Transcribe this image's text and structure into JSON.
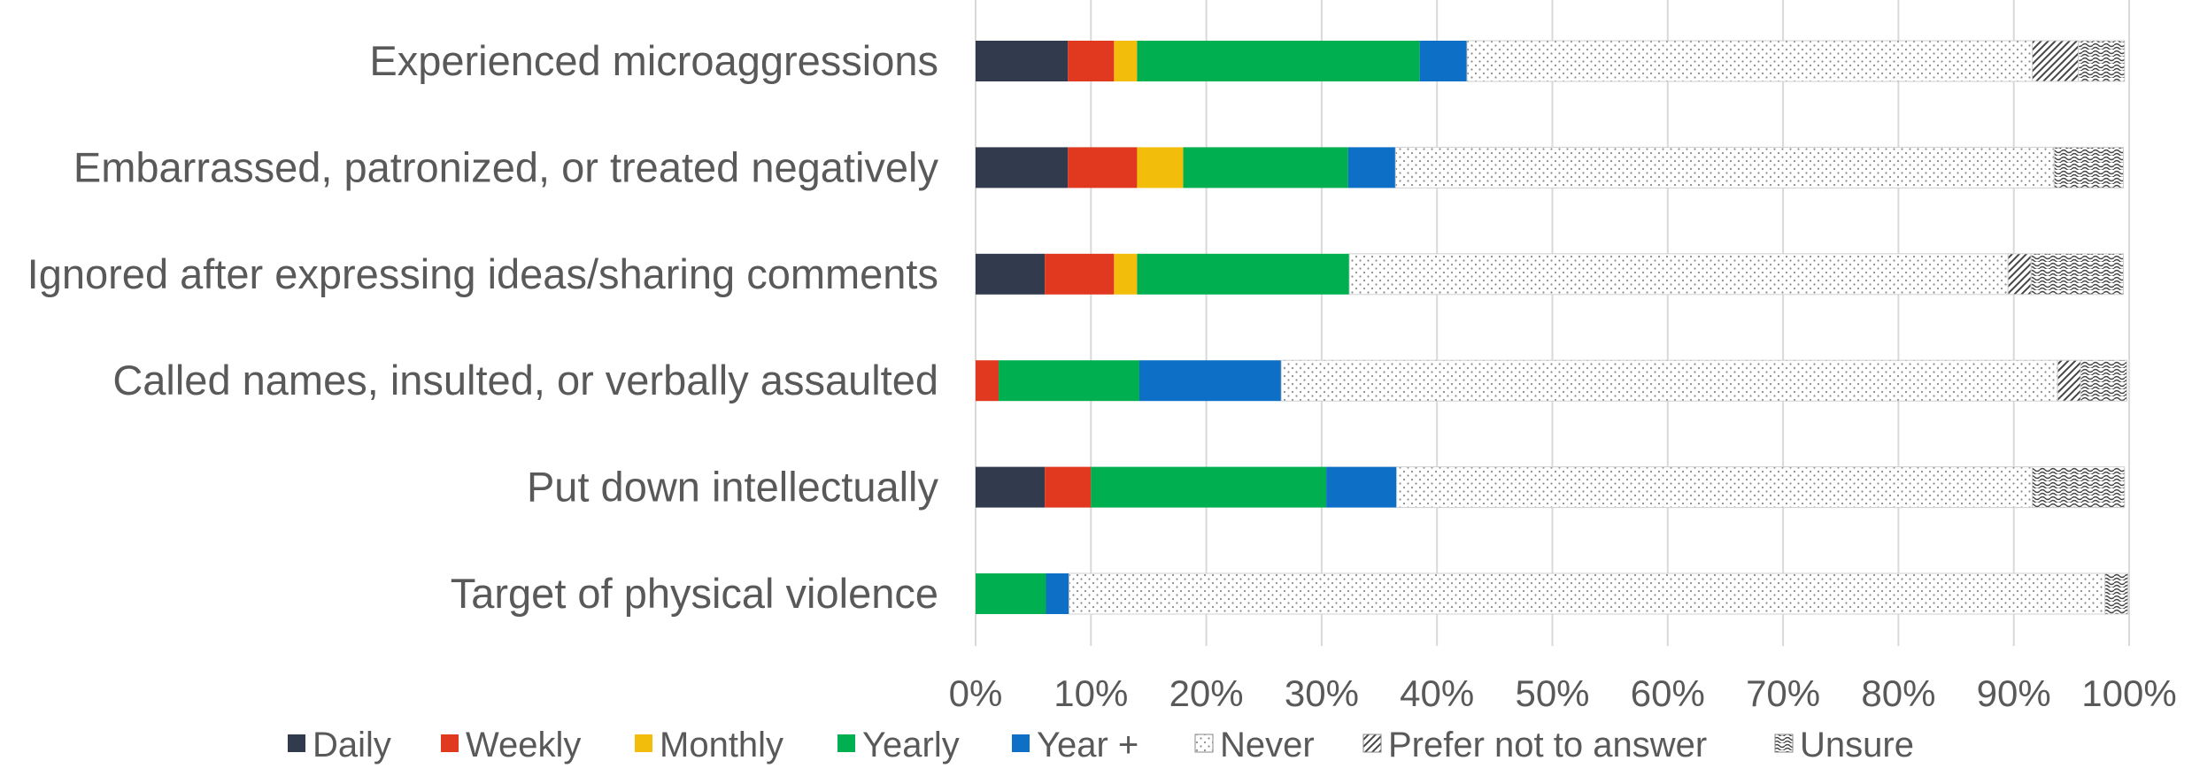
{
  "chart_data": {
    "type": "bar",
    "orientation": "horizontal",
    "stacked": "percent",
    "categories": [
      "Experienced microaggressions",
      "Embarrassed, patronized, or treated negatively",
      "Ignored after expressing ideas/sharing comments",
      "Called names, insulted, or verbally assaulted",
      "Put down intellectually",
      "Target of physical violence"
    ],
    "series": [
      {
        "name": "Daily",
        "color": "#323b4e",
        "pattern": "solid",
        "values": [
          8,
          8,
          6,
          0,
          6,
          0
        ]
      },
      {
        "name": "Weekly",
        "color": "#e0391f",
        "pattern": "solid",
        "values": [
          4,
          6,
          6,
          2,
          4,
          0
        ]
      },
      {
        "name": "Monthly",
        "color": "#f2bd0b",
        "pattern": "solid",
        "values": [
          2,
          4,
          2,
          0,
          0,
          0
        ]
      },
      {
        "name": "Yearly",
        "color": "#00b050",
        "pattern": "solid",
        "values": [
          24.5,
          14.3,
          18.4,
          12.2,
          20.4,
          6.1
        ]
      },
      {
        "name": "Year +",
        "color": "#0d6fc6",
        "pattern": "solid",
        "values": [
          4.1,
          4.1,
          0,
          12.3,
          6.1,
          2.0
        ]
      },
      {
        "name": "Never",
        "color": "#ffffff",
        "pattern": "dots",
        "values": [
          49,
          57.1,
          57.1,
          67.3,
          55.1,
          89.8
        ]
      },
      {
        "name": "Prefer not to answer",
        "color": "#ffffff",
        "pattern": "diagonal",
        "values": [
          4,
          0,
          2,
          2,
          0,
          0
        ]
      },
      {
        "name": "Unsure",
        "color": "#ffffff",
        "pattern": "waves",
        "values": [
          4,
          6,
          8,
          4,
          8,
          2
        ]
      }
    ],
    "x_ticks": [
      "0%",
      "10%",
      "20%",
      "30%",
      "40%",
      "50%",
      "60%",
      "70%",
      "80%",
      "90%",
      "100%"
    ],
    "xlim": [
      0,
      100
    ],
    "grid": "vertical",
    "legend": "bottom"
  }
}
